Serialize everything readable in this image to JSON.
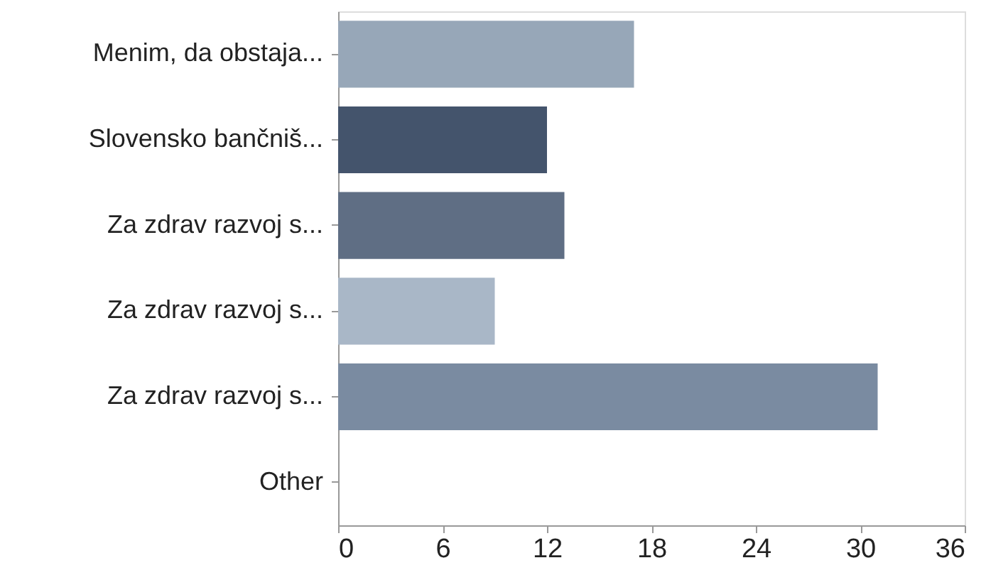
{
  "chart_data": {
    "type": "bar",
    "orientation": "horizontal",
    "categories": [
      "Menim, da obstaja...",
      "Slovensko bančniš...",
      "Za zdrav razvoj s...",
      "Za zdrav razvoj s...",
      "Za zdrav razvoj s...",
      "Other"
    ],
    "values": [
      17,
      12,
      13,
      9,
      31,
      0
    ],
    "colors": [
      "#97a7b8",
      "#44546c",
      "#5f6e84",
      "#a9b7c7",
      "#7a8ba1",
      "#8a9ab0"
    ],
    "xlim": [
      0,
      36
    ],
    "xticks": [
      0,
      6,
      12,
      18,
      24,
      30,
      36
    ],
    "grid": false
  }
}
